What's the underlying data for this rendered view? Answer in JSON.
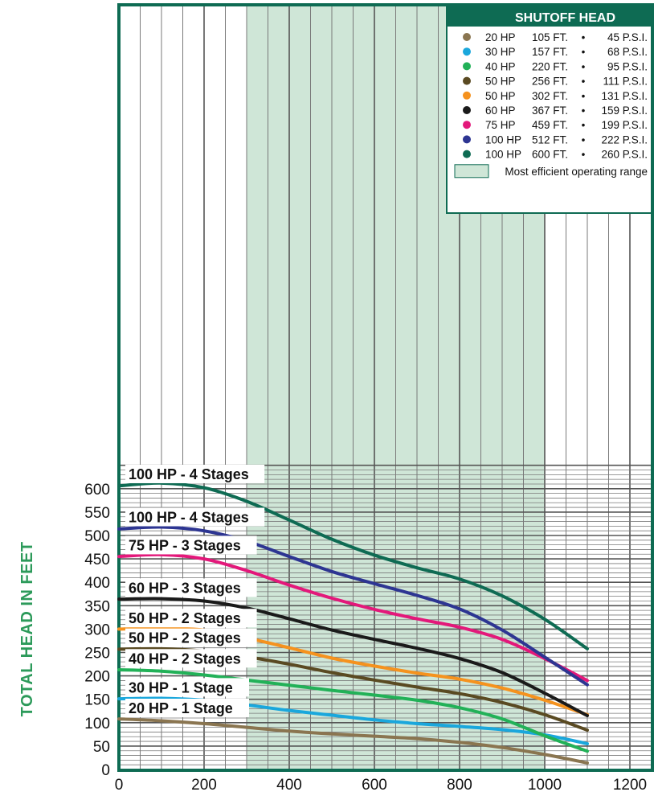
{
  "chart_data": {
    "type": "line",
    "title": "",
    "xlabel": "",
    "ylabel": "TOTAL HEAD IN FEET",
    "xlim": [
      0,
      1200
    ],
    "ylim": [
      0,
      650
    ],
    "x_ticks": [
      0,
      200,
      400,
      600,
      800,
      1000,
      1200
    ],
    "y_ticks": [
      0,
      50,
      100,
      150,
      200,
      250,
      300,
      350,
      400,
      450,
      500,
      550,
      600
    ],
    "grid": true,
    "efficient_range": [
      300,
      1000
    ],
    "series": [
      {
        "name": "20 HP - 1 Stage",
        "color": "#8a7550",
        "x": [
          0,
          100,
          200,
          300,
          400,
          500,
          600,
          700,
          800,
          900,
          1000,
          1100
        ],
        "y": [
          108,
          104,
          98,
          90,
          82,
          76,
          71,
          66,
          58,
          47,
          32,
          14
        ]
      },
      {
        "name": "30 HP - 1 Stage",
        "color": "#1aa7dc",
        "x": [
          0,
          100,
          200,
          300,
          400,
          500,
          600,
          700,
          800,
          900,
          1000,
          1100
        ],
        "y": [
          151,
          152,
          148,
          138,
          126,
          116,
          106,
          98,
          92,
          85,
          74,
          55
        ]
      },
      {
        "name": "40 HP - 2 Stages",
        "color": "#22b158",
        "x": [
          0,
          100,
          200,
          300,
          400,
          500,
          600,
          700,
          800,
          900,
          1000,
          1100
        ],
        "y": [
          213,
          210,
          202,
          191,
          180,
          169,
          159,
          148,
          132,
          108,
          72,
          39
        ]
      },
      {
        "name": "50 HP - 2 Stages",
        "color": "#5a4a22",
        "x": [
          0,
          100,
          200,
          300,
          400,
          500,
          600,
          700,
          800,
          900,
          1000,
          1100
        ],
        "y": [
          257,
          258,
          253,
          241,
          225,
          207,
          191,
          176,
          162,
          143,
          117,
          84
        ]
      },
      {
        "name": "50 HP - 2 Stages",
        "color": "#f5921e",
        "x": [
          0,
          100,
          200,
          300,
          400,
          500,
          600,
          700,
          800,
          900,
          1000,
          1100
        ],
        "y": [
          300,
          302,
          298,
          281,
          260,
          238,
          221,
          206,
          193,
          174,
          148,
          117
        ]
      },
      {
        "name": "60 HP - 3 Stages",
        "color": "#1a1a1a",
        "x": [
          0,
          100,
          200,
          300,
          400,
          500,
          600,
          700,
          800,
          900,
          1000,
          1100
        ],
        "y": [
          364,
          365,
          360,
          345,
          322,
          298,
          278,
          259,
          237,
          207,
          163,
          115
        ]
      },
      {
        "name": "75 HP - 3 Stages",
        "color": "#e3187a",
        "x": [
          0,
          100,
          200,
          300,
          400,
          500,
          600,
          700,
          800,
          900,
          1000,
          1100
        ],
        "y": [
          455,
          459,
          450,
          425,
          394,
          366,
          342,
          322,
          304,
          278,
          237,
          190
        ]
      },
      {
        "name": "100 HP - 4 Stages",
        "color": "#2d3592",
        "x": [
          0,
          100,
          200,
          300,
          400,
          500,
          600,
          700,
          800,
          900,
          1000,
          1100
        ],
        "y": [
          514,
          518,
          510,
          488,
          455,
          423,
          397,
          372,
          343,
          298,
          240,
          181
        ]
      },
      {
        "name": "100 HP - 4 Stages",
        "color": "#0e6b53",
        "x": [
          0,
          100,
          200,
          300,
          400,
          500,
          600,
          700,
          800,
          900,
          1000,
          1100
        ],
        "y": [
          606,
          612,
          602,
          573,
          533,
          492,
          458,
          431,
          407,
          371,
          321,
          258
        ]
      }
    ],
    "curve_labels": [
      "20 HP - 1 Stage",
      "30 HP - 1 Stage",
      "40 HP - 2 Stages",
      "50 HP - 2 Stages",
      "50 HP - 2 Stages",
      "60 HP - 3 Stages",
      "75 HP - 3 Stages",
      "100 HP - 4 Stages",
      "100 HP - 4 Stages"
    ],
    "curve_label_y": [
      110,
      154,
      216,
      260,
      302,
      367,
      458,
      518,
      610
    ],
    "legend": {
      "title": "SHUTOFF HEAD",
      "placement": "top-right",
      "rows": [
        {
          "hp": "20 HP",
          "feet": "105 FT.",
          "sep": "•",
          "psi": "45 P.S.I.",
          "color": "#8a7550"
        },
        {
          "hp": "30 HP",
          "feet": "157 FT.",
          "sep": "•",
          "psi": "68 P.S.I.",
          "color": "#1aa7dc"
        },
        {
          "hp": "40 HP",
          "feet": "220 FT.",
          "sep": "•",
          "psi": "95 P.S.I.",
          "color": "#22b158"
        },
        {
          "hp": "50 HP",
          "feet": "256 FT.",
          "sep": "•",
          "psi": "111 P.S.I.",
          "color": "#5a4a22"
        },
        {
          "hp": "50 HP",
          "feet": "302 FT.",
          "sep": "•",
          "psi": "131 P.S.I.",
          "color": "#f5921e"
        },
        {
          "hp": "60 HP",
          "feet": "367 FT.",
          "sep": "•",
          "psi": "159 P.S.I.",
          "color": "#1a1a1a"
        },
        {
          "hp": "75 HP",
          "feet": "459 FT.",
          "sep": "•",
          "psi": "199 P.S.I.",
          "color": "#e3187a"
        },
        {
          "hp": "100 HP",
          "feet": "512 FT.",
          "sep": "•",
          "psi": "222 P.S.I.",
          "color": "#2d3592"
        },
        {
          "hp": "100 HP",
          "feet": "600 FT.",
          "sep": "•",
          "psi": "260 P.S.I.",
          "color": "#0e6b53"
        }
      ],
      "efficient_label": "Most efficient operating range"
    },
    "colors": {
      "frame": "#0e6b53",
      "efficient_fill": "#cfe6d7",
      "grid": "#7a7a7a",
      "ylabel": "#2c9a5a"
    }
  }
}
